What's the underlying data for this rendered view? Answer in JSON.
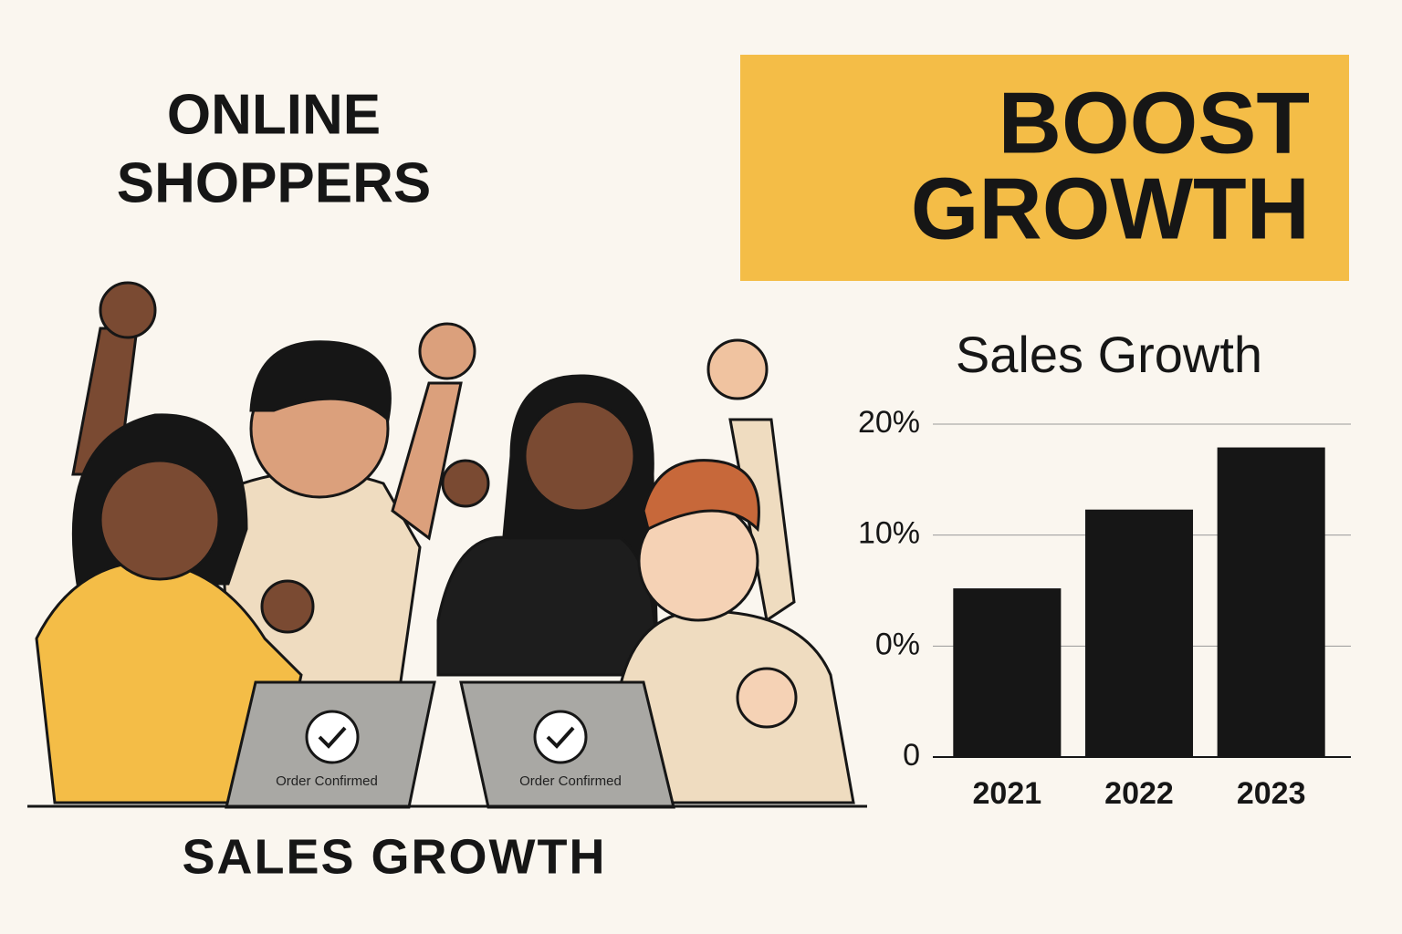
{
  "headline": [
    "ONLINE",
    "SHOPPERS"
  ],
  "banner": [
    "BOOST",
    "GROWTH"
  ],
  "caption": "SALES GROWTH",
  "laptops": [
    "Order Confirmed",
    "Order Confirmed"
  ],
  "chart_data": {
    "type": "bar",
    "title": "Sales Growth",
    "categories": [
      "2021",
      "2022",
      "2023"
    ],
    "values": [
      5.2,
      12.3,
      17.9
    ],
    "color": "#161616",
    "ylim": [
      -10,
      20
    ],
    "yticks": [
      {
        "value": 0,
        "label": "0%"
      },
      {
        "value": 10,
        "label": "10%"
      },
      {
        "value": 20,
        "label": "20%"
      }
    ],
    "baseline_label": "0",
    "grid": true
  }
}
